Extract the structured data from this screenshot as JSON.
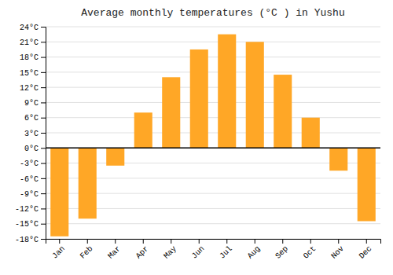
{
  "chart_data": {
    "type": "bar",
    "title": "Average monthly temperatures (°C ) in Yushu",
    "categories": [
      "Jan",
      "Feb",
      "Mar",
      "Apr",
      "May",
      "Jun",
      "Jul",
      "Aug",
      "Sep",
      "Oct",
      "Nov",
      "Dec"
    ],
    "values": [
      -17.5,
      -14.0,
      -3.5,
      7.0,
      14.0,
      19.5,
      22.5,
      21.0,
      14.5,
      6.0,
      -4.5,
      -14.5
    ],
    "color": "#FFA726",
    "ylim": [
      -18,
      24
    ],
    "yticks": [
      {
        "value": -18,
        "label": "-18°C"
      },
      {
        "value": -15,
        "label": "-15°C"
      },
      {
        "value": -12,
        "label": "-12°C"
      },
      {
        "value": -9,
        "label": "-9°C"
      },
      {
        "value": -6,
        "label": "-6°C"
      },
      {
        "value": -3,
        "label": "-3°C"
      },
      {
        "value": 0,
        "label": "0°C"
      },
      {
        "value": 3,
        "label": "3°C"
      },
      {
        "value": 6,
        "label": "6°C"
      },
      {
        "value": 9,
        "label": "9°C"
      },
      {
        "value": 12,
        "label": "12°C"
      },
      {
        "value": 15,
        "label": "15°C"
      },
      {
        "value": 18,
        "label": "18°C"
      },
      {
        "value": 21,
        "label": "21°C"
      },
      {
        "value": 24,
        "label": "24°C"
      }
    ],
    "grid": true
  }
}
